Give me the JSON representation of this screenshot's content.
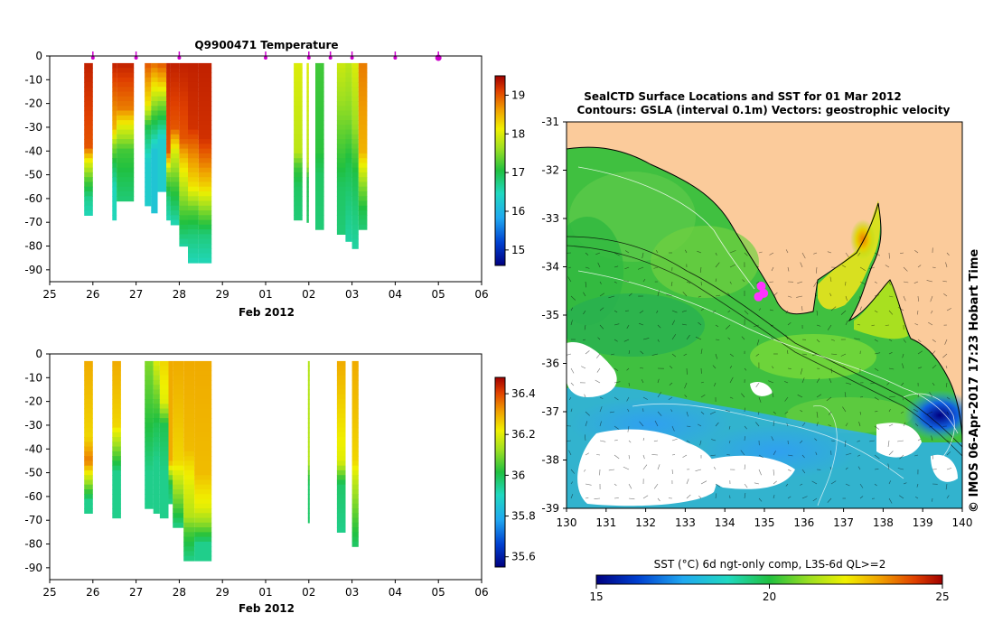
{
  "chart_data": [
    {
      "type": "heatmap",
      "id": "temperature-section",
      "title": "Q9900471  Temperature",
      "xlabel": "Feb 2012",
      "ylabel": "",
      "x_ticks": [
        "25",
        "26",
        "27",
        "28",
        "29",
        "01",
        "02",
        "03",
        "04",
        "05",
        "06"
      ],
      "x_range_days": [
        25,
        35
      ],
      "y_ticks": [
        "0",
        "-10",
        "-20",
        "-30",
        "-40",
        "-50",
        "-60",
        "-70",
        "-80",
        "-90"
      ],
      "ylim": [
        -95,
        0
      ],
      "colorbar": {
        "ticks": [
          "15",
          "16",
          "17",
          "18",
          "19"
        ],
        "range": [
          14.6,
          19.5
        ]
      },
      "profile_markers_day": [
        26.0,
        27.0,
        28.0,
        30.0,
        31.0,
        31.0,
        31.5,
        32.0,
        33.0,
        34.0
      ],
      "profiles": [
        {
          "x0": 25.8,
          "x1": 26.0,
          "depth": -67,
          "stops": [
            [
              -3,
              19.3
            ],
            [
              -38,
              19.0
            ],
            [
              -45,
              18.0
            ],
            [
              -52,
              17.3
            ],
            [
              -60,
              16.7
            ],
            [
              -67,
              16.5
            ]
          ]
        },
        {
          "x0": 26.45,
          "x1": 26.55,
          "depth": -69,
          "stops": [
            [
              -3,
              19.3
            ],
            [
              -30,
              18.5
            ],
            [
              -38,
              17.5
            ],
            [
              -45,
              17.0
            ],
            [
              -55,
              16.5
            ],
            [
              -69,
              16.5
            ]
          ]
        },
        {
          "x0": 26.55,
          "x1": 26.95,
          "depth": -61,
          "stops": [
            [
              -3,
              19.3
            ],
            [
              -22,
              18.8
            ],
            [
              -30,
              18.0
            ],
            [
              -40,
              17.2
            ],
            [
              -50,
              17.0
            ],
            [
              -61,
              16.8
            ]
          ]
        },
        {
          "x0": 27.2,
          "x1": 27.35,
          "depth": -63,
          "stops": [
            [
              -3,
              19.0
            ],
            [
              -20,
              18.2
            ],
            [
              -30,
              17.0
            ],
            [
              -45,
              16.3
            ],
            [
              -63,
              16.3
            ]
          ]
        },
        {
          "x0": 27.35,
          "x1": 27.5,
          "depth": -66,
          "stops": [
            [
              -3,
              18.9
            ],
            [
              -15,
              18.0
            ],
            [
              -25,
              17.2
            ],
            [
              -40,
              16.2
            ],
            [
              -66,
              16.2
            ]
          ]
        },
        {
          "x0": 27.5,
          "x1": 27.7,
          "depth": -57,
          "stops": [
            [
              -3,
              19.0
            ],
            [
              -10,
              18.5
            ],
            [
              -20,
              17.5
            ],
            [
              -35,
              16.3
            ],
            [
              -57,
              16.3
            ]
          ]
        },
        {
          "x0": 27.7,
          "x1": 27.8,
          "depth": -69,
          "stops": [
            [
              -3,
              19.3
            ],
            [
              -40,
              19.0
            ],
            [
              -50,
              17.5
            ],
            [
              -60,
              16.8
            ],
            [
              -69,
              16.5
            ]
          ]
        },
        {
          "x0": 27.8,
          "x1": 28.0,
          "depth": -71,
          "stops": [
            [
              -3,
              19.3
            ],
            [
              -30,
              19.0
            ],
            [
              -40,
              18.0
            ],
            [
              -55,
              17.2
            ],
            [
              -65,
              16.8
            ],
            [
              -71,
              16.5
            ]
          ]
        },
        {
          "x0": 28.0,
          "x1": 28.2,
          "depth": -80,
          "stops": [
            [
              -3,
              19.3
            ],
            [
              -35,
              19.0
            ],
            [
              -45,
              18.3
            ],
            [
              -55,
              17.8
            ],
            [
              -65,
              17.3
            ],
            [
              -80,
              16.6
            ]
          ]
        },
        {
          "x0": 28.2,
          "x1": 28.45,
          "depth": -87,
          "stops": [
            [
              -3,
              19.3
            ],
            [
              -30,
              19.2
            ],
            [
              -40,
              18.8
            ],
            [
              -55,
              18.2
            ],
            [
              -65,
              17.3
            ],
            [
              -75,
              16.8
            ],
            [
              -87,
              16.5
            ]
          ]
        },
        {
          "x0": 28.45,
          "x1": 28.75,
          "depth": -87,
          "stops": [
            [
              -3,
              19.3
            ],
            [
              -35,
              19.2
            ],
            [
              -45,
              18.8
            ],
            [
              -55,
              18.3
            ],
            [
              -65,
              17.5
            ],
            [
              -75,
              16.8
            ],
            [
              -87,
              16.5
            ]
          ]
        },
        {
          "x0": 30.65,
          "x1": 30.85,
          "depth": -69,
          "stops": [
            [
              -3,
              18.0
            ],
            [
              -40,
              17.8
            ],
            [
              -47,
              17.2
            ],
            [
              -55,
              16.9
            ],
            [
              -69,
              16.8
            ]
          ]
        },
        {
          "x0": 30.95,
          "x1": 31.0,
          "depth": -70,
          "stops": [
            [
              -3,
              18.0
            ],
            [
              -45,
              17.8
            ],
            [
              -52,
              17.0
            ],
            [
              -70,
              16.9
            ]
          ]
        },
        {
          "x0": 31.15,
          "x1": 31.35,
          "depth": -73,
          "stops": [
            [
              -3,
              17.2
            ],
            [
              -40,
              17.1
            ],
            [
              -50,
              16.9
            ],
            [
              -73,
              16.8
            ]
          ]
        },
        {
          "x0": 31.65,
          "x1": 31.85,
          "depth": -75,
          "stops": [
            [
              -3,
              17.9
            ],
            [
              -20,
              17.6
            ],
            [
              -40,
              17.2
            ],
            [
              -55,
              16.9
            ],
            [
              -75,
              16.8
            ]
          ]
        },
        {
          "x0": 31.85,
          "x1": 32.0,
          "depth": -78,
          "stops": [
            [
              -3,
              17.8
            ],
            [
              -25,
              17.5
            ],
            [
              -45,
              17.0
            ],
            [
              -60,
              16.8
            ],
            [
              -78,
              16.6
            ]
          ]
        },
        {
          "x0": 32.0,
          "x1": 32.15,
          "depth": -81,
          "stops": [
            [
              -3,
              18.0
            ],
            [
              -30,
              17.6
            ],
            [
              -50,
              17.0
            ],
            [
              -65,
              16.8
            ],
            [
              -81,
              16.6
            ]
          ]
        },
        {
          "x0": 32.15,
          "x1": 32.35,
          "depth": -73,
          "stops": [
            [
              -3,
              18.8
            ],
            [
              -40,
              18.5
            ],
            [
              -55,
              17.5
            ],
            [
              -65,
              17.0
            ],
            [
              -73,
              16.8
            ]
          ]
        }
      ]
    },
    {
      "type": "heatmap",
      "id": "salinity-section",
      "title": "",
      "xlabel": "Feb 2012",
      "ylabel": "",
      "x_ticks": [
        "25",
        "26",
        "27",
        "28",
        "29",
        "01",
        "02",
        "03",
        "04",
        "05",
        "06"
      ],
      "x_range_days": [
        25,
        35
      ],
      "y_ticks": [
        "0",
        "-10",
        "-20",
        "-30",
        "-40",
        "-50",
        "-60",
        "-70",
        "-80",
        "-90"
      ],
      "ylim": [
        -95,
        0
      ],
      "colorbar": {
        "ticks": [
          "35.6",
          "35.8",
          "36",
          "36.2",
          "36.4"
        ],
        "range": [
          35.55,
          36.48
        ]
      },
      "profiles": [
        {
          "x0": 25.8,
          "x1": 26.0,
          "depth": -67,
          "stops": [
            [
              -3,
              36.3
            ],
            [
              -35,
              36.25
            ],
            [
              -45,
              36.35
            ],
            [
              -55,
              36.1
            ],
            [
              -62,
              35.95
            ],
            [
              -67,
              35.95
            ]
          ]
        },
        {
          "x0": 26.45,
          "x1": 26.65,
          "depth": -69,
          "stops": [
            [
              -3,
              36.3
            ],
            [
              -30,
              36.25
            ],
            [
              -40,
              36.1
            ],
            [
              -50,
              35.95
            ],
            [
              -69,
              35.95
            ]
          ]
        },
        {
          "x0": 27.2,
          "x1": 27.4,
          "depth": -65,
          "stops": [
            [
              -3,
              36.1
            ],
            [
              -20,
              36.05
            ],
            [
              -35,
              36.0
            ],
            [
              -50,
              35.95
            ],
            [
              -65,
              35.95
            ]
          ]
        },
        {
          "x0": 27.4,
          "x1": 27.55,
          "depth": -67,
          "stops": [
            [
              -3,
              36.2
            ],
            [
              -15,
              36.1
            ],
            [
              -30,
              36.0
            ],
            [
              -45,
              35.95
            ],
            [
              -67,
              35.95
            ]
          ]
        },
        {
          "x0": 27.55,
          "x1": 27.75,
          "depth": -69,
          "stops": [
            [
              -3,
              36.25
            ],
            [
              -20,
              36.2
            ],
            [
              -30,
              36.0
            ],
            [
              -50,
              35.95
            ],
            [
              -69,
              35.95
            ]
          ]
        },
        {
          "x0": 27.75,
          "x1": 27.85,
          "depth": -63,
          "stops": [
            [
              -3,
              36.3
            ],
            [
              -45,
              36.3
            ],
            [
              -55,
              36.0
            ],
            [
              -63,
              35.95
            ]
          ]
        },
        {
          "x0": 27.85,
          "x1": 28.1,
          "depth": -73,
          "stops": [
            [
              -3,
              36.3
            ],
            [
              -45,
              36.25
            ],
            [
              -55,
              36.15
            ],
            [
              -65,
              36.05
            ],
            [
              -73,
              35.95
            ]
          ]
        },
        {
          "x0": 28.1,
          "x1": 28.35,
          "depth": -87,
          "stops": [
            [
              -3,
              36.3
            ],
            [
              -40,
              36.28
            ],
            [
              -55,
              36.2
            ],
            [
              -68,
              36.15
            ],
            [
              -75,
              36.05
            ],
            [
              -87,
              35.95
            ]
          ]
        },
        {
          "x0": 28.35,
          "x1": 28.75,
          "depth": -87,
          "stops": [
            [
              -3,
              36.3
            ],
            [
              -50,
              36.28
            ],
            [
              -65,
              36.2
            ],
            [
              -72,
              36.1
            ],
            [
              -80,
              35.95
            ],
            [
              -87,
              35.95
            ]
          ]
        },
        {
          "x0": 30.98,
          "x1": 31.02,
          "depth": -71,
          "stops": [
            [
              -3,
              36.15
            ],
            [
              -45,
              36.15
            ],
            [
              -55,
              35.98
            ],
            [
              -71,
              35.98
            ]
          ]
        },
        {
          "x0": 31.65,
          "x1": 31.85,
          "depth": -75,
          "stops": [
            [
              -3,
              36.3
            ],
            [
              -45,
              36.2
            ],
            [
              -55,
              35.98
            ],
            [
              -75,
              35.95
            ]
          ]
        },
        {
          "x0": 32.0,
          "x1": 32.15,
          "depth": -81,
          "stops": [
            [
              -3,
              36.3
            ],
            [
              -45,
              36.25
            ],
            [
              -55,
              36.15
            ],
            [
              -70,
              36.05
            ],
            [
              -81,
              35.98
            ]
          ]
        }
      ]
    },
    {
      "type": "heatmap",
      "id": "sst-map",
      "title": "SealCTD Surface Locations and SST for 01 Mar 2012",
      "subtitle": "Contours: GSLA (interval 0.1m) Vectors: geostrophic velocity",
      "xlabel": "",
      "ylabel": "",
      "x_ticks": [
        "130",
        "131",
        "132",
        "133",
        "134",
        "135",
        "136",
        "137",
        "138",
        "139",
        "140"
      ],
      "xlim": [
        130,
        140
      ],
      "y_ticks": [
        "-31",
        "-32",
        "-33",
        "-34",
        "-35",
        "-36",
        "-37",
        "-38",
        "-39"
      ],
      "ylim": [
        -39,
        -31
      ],
      "side_label": "© IMOS 06-Apr-2017 17:23 Hobart Time",
      "colorbar": {
        "label": "SST (°C) 6d ngt-only comp, L3S-6d QL>=2",
        "ticks": [
          "15",
          "20",
          "25"
        ],
        "range": [
          15,
          25
        ]
      },
      "seal_locations": [
        [
          134.92,
          -34.4
        ],
        [
          134.98,
          -34.55
        ],
        [
          134.85,
          -34.62
        ]
      ]
    }
  ],
  "colors": {
    "land": "#fbcb9b",
    "marker": "#cc00cc",
    "seal": "#ff33ff"
  }
}
